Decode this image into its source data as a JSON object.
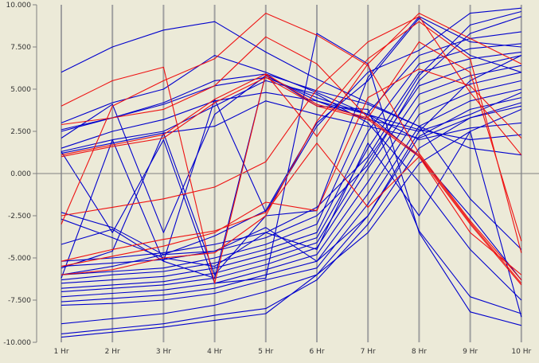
{
  "chart_data": {
    "type": "line",
    "categories": [
      "1 Hr",
      "2 Hr",
      "3 Hr",
      "4 Hr",
      "5 Hr",
      "6 Hr",
      "7 Hr",
      "8 Hr",
      "9 Hr",
      "10 Hr"
    ],
    "ylim": [
      -10000,
      10000
    ],
    "y_ticks": [
      10000,
      7500,
      5000,
      2500,
      0,
      -2500,
      -5000,
      -7500,
      -10000
    ],
    "y_tick_labels": [
      "10.000",
      "7.500",
      "5.000",
      "2.500",
      "0.000",
      "-2.500",
      "-5.000",
      "-7.500",
      "-10.000"
    ],
    "grid": "vertical",
    "zero_line": true,
    "colors": {
      "background": "#ecead8",
      "grid": "#a0a0a0",
      "axis": "#808080",
      "blue": "#0000cc",
      "red": "#ee1111"
    },
    "series": [
      {
        "color": "blue",
        "values": [
          6000,
          7500,
          8500,
          9000,
          7200,
          5600,
          4200,
          2800,
          1500,
          1100
        ]
      },
      {
        "color": "blue",
        "values": [
          3000,
          4200,
          5000,
          7000,
          6000,
          4800,
          3500,
          2000,
          2700,
          3000
        ]
      },
      {
        "color": "blue",
        "values": [
          2500,
          3300,
          4100,
          5200,
          5700,
          4500,
          3500,
          2600,
          2000,
          2300
        ]
      },
      {
        "color": "blue",
        "values": [
          1500,
          2500,
          3200,
          4300,
          4800,
          4300,
          3200,
          2500,
          3500,
          4800
        ]
      },
      {
        "color": "blue",
        "values": [
          1200,
          1800,
          2400,
          2800,
          4300,
          3500,
          2800,
          2100,
          3300,
          4200
        ]
      },
      {
        "color": "blue",
        "values": [
          -2300,
          -3200,
          -4800,
          -4600,
          -3200,
          -5200,
          -2500,
          2500,
          5500,
          7000
        ]
      },
      {
        "color": "blue",
        "values": [
          -4200,
          -3300,
          -5200,
          4400,
          -2300,
          2800,
          6000,
          7300,
          9500,
          9800
        ]
      },
      {
        "color": "blue",
        "values": [
          -5200,
          -5000,
          -4700,
          -4200,
          -3500,
          -2000,
          1000,
          5800,
          8800,
          9600
        ]
      },
      {
        "color": "blue",
        "values": [
          -5500,
          -5300,
          -5100,
          -4600,
          -3800,
          -2500,
          500,
          5500,
          8300,
          9300
        ]
      },
      {
        "color": "blue",
        "values": [
          -6000,
          -5800,
          -5600,
          -5000,
          -4200,
          -3000,
          3600,
          7000,
          8000,
          8400
        ]
      },
      {
        "color": "blue",
        "values": [
          -6300,
          -6000,
          -5800,
          -5300,
          -4500,
          -3500,
          2500,
          6500,
          7400,
          7700
        ]
      },
      {
        "color": "blue",
        "values": [
          -6500,
          -6300,
          -6100,
          -5600,
          -4800,
          -3800,
          1500,
          6000,
          6800,
          7200
        ]
      },
      {
        "color": "blue",
        "values": [
          -6800,
          -6600,
          -6400,
          -5900,
          -5100,
          -4100,
          800,
          5200,
          6300,
          7000
        ]
      },
      {
        "color": "blue",
        "values": [
          -7000,
          -6800,
          -6600,
          -6200,
          -5400,
          -4400,
          300,
          4700,
          5800,
          6400
        ]
      },
      {
        "color": "blue",
        "values": [
          -7300,
          -7100,
          -6900,
          -6500,
          -5700,
          -4800,
          -500,
          4100,
          5300,
          6000
        ]
      },
      {
        "color": "blue",
        "values": [
          -7600,
          -7400,
          -7200,
          -6800,
          -6000,
          -5200,
          -1200,
          3500,
          4800,
          5500
        ]
      },
      {
        "color": "blue",
        "values": [
          -7800,
          -7700,
          -7500,
          -7100,
          -6300,
          -5600,
          -1800,
          2800,
          4300,
          5000
        ]
      },
      {
        "color": "blue",
        "values": [
          -8900,
          -8600,
          -8300,
          -7800,
          -7000,
          -6000,
          -2500,
          2200,
          3800,
          4500
        ]
      },
      {
        "color": "blue",
        "values": [
          -9500,
          -9200,
          -8900,
          -8400,
          -8000,
          -6300,
          -3000,
          1500,
          3300,
          4000
        ]
      },
      {
        "color": "blue",
        "values": [
          -9700,
          -9400,
          -9100,
          -8700,
          -8300,
          -6000,
          -3500,
          600,
          2500,
          3800
        ]
      },
      {
        "color": "blue",
        "values": [
          1300,
          -3500,
          2000,
          -6500,
          -6200,
          8300,
          6500,
          -3500,
          -8200,
          -9000
        ]
      },
      {
        "color": "blue",
        "values": [
          -6200,
          2000,
          -5200,
          -6200,
          5900,
          4000,
          3800,
          -3400,
          -7300,
          -8300
        ]
      },
      {
        "color": "blue",
        "values": [
          2100,
          4100,
          -3500,
          3500,
          5800,
          4300,
          3500,
          1000,
          -2500,
          -6300
        ]
      },
      {
        "color": "blue",
        "values": [
          -5600,
          -4600,
          2400,
          -6000,
          -2500,
          -2200,
          5700,
          9300,
          7800,
          7500
        ]
      },
      {
        "color": "blue",
        "values": [
          -6000,
          -5500,
          -4800,
          -3700,
          -2200,
          3000,
          5500,
          9200,
          7000,
          6000
        ]
      },
      {
        "color": "blue",
        "values": [
          2600,
          3300,
          4200,
          5500,
          5900,
          4900,
          4100,
          2800,
          -1500,
          -4500
        ]
      },
      {
        "color": "blue",
        "values": [
          1300,
          2000,
          2500,
          4000,
          5500,
          4700,
          3000,
          -500,
          -4500,
          -7500
        ]
      },
      {
        "color": "blue",
        "values": [
          -2700,
          -3800,
          -5000,
          -5500,
          -3500,
          -4500,
          1800,
          -2500,
          2500,
          -8500
        ]
      },
      {
        "color": "red",
        "values": [
          4000,
          5500,
          6300,
          -6500,
          5900,
          2200,
          6500,
          9500,
          8000,
          6500
        ]
      },
      {
        "color": "red",
        "values": [
          -3000,
          4000,
          5500,
          6800,
          9500,
          8200,
          6400,
          1200,
          -2800,
          -6300
        ]
      },
      {
        "color": "red",
        "values": [
          1100,
          1700,
          2300,
          4400,
          5900,
          4100,
          3300,
          1100,
          -2900,
          -6500
        ]
      },
      {
        "color": "red",
        "values": [
          -2500,
          -2000,
          -1500,
          -800,
          700,
          5000,
          7800,
          9300,
          4800,
          1100
        ]
      },
      {
        "color": "red",
        "values": [
          1000,
          1600,
          2100,
          4200,
          5700,
          4000,
          3200,
          1000,
          -3000,
          -6600
        ]
      },
      {
        "color": "red",
        "values": [
          -5200,
          -4500,
          -3900,
          -3400,
          -2300,
          1800,
          -2000,
          1000,
          -3500,
          -6000
        ]
      },
      {
        "color": "red",
        "values": [
          -5500,
          -4900,
          -4300,
          -3500,
          -1700,
          -2200,
          4500,
          6200,
          5200,
          2100
        ]
      },
      {
        "color": "red",
        "values": [
          2900,
          3300,
          3800,
          5200,
          8100,
          6500,
          3300,
          7800,
          6000,
          -4000
        ]
      },
      {
        "color": "red",
        "values": [
          -6000,
          -5700,
          -5000,
          -4700,
          -2500,
          3100,
          6800,
          9000,
          6800,
          -4700
        ]
      }
    ]
  }
}
